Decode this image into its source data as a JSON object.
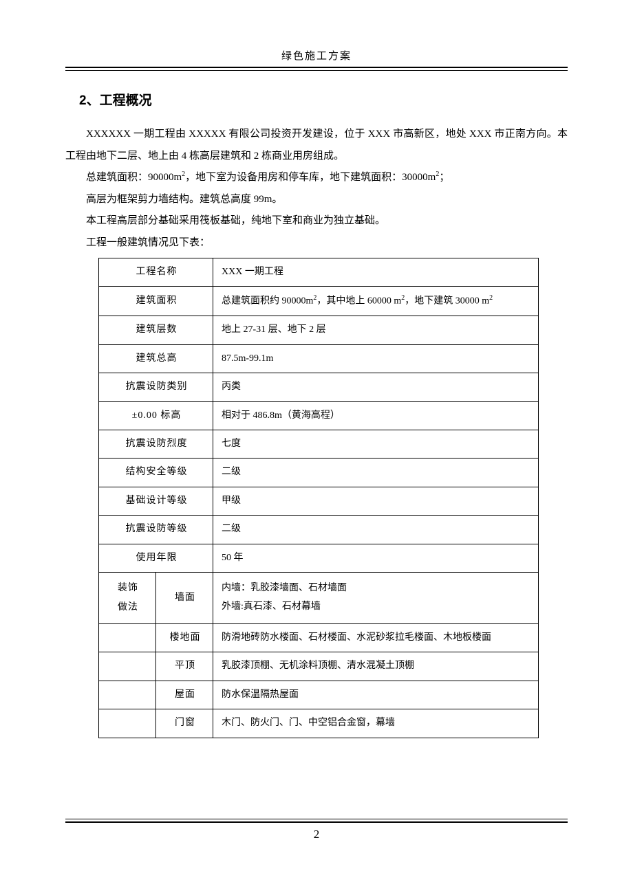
{
  "header": {
    "title": "绿色施工方案"
  },
  "section": {
    "heading": "2、工程概况",
    "p1": "XXXXXX 一期工程由 XXXXX 有限公司投资开发建设，位于 XXX 市高新区，地处 XXX 市正南方向。本工程由地下二层、地上由 4 栋高层建筑和 2 栋商业用房组成。",
    "p2_html": "总建筑面积：90000m<sup>2</sup>，地下室为设备用房和停车库，地下建筑面积：30000m<sup>2</sup>；",
    "p3": "高层为框架剪力墙结构。建筑总高度 99m。",
    "p4": "本工程高层部分基础采用筏板基础，纯地下室和商业为独立基础。",
    "p5": "工程一般建筑情况见下表："
  },
  "table": {
    "rows": [
      {
        "label": "工程名称",
        "value": "XXX 一期工程"
      },
      {
        "label": "建筑面积",
        "value_html": "总建筑面积约 90000m<sup>2</sup>，其中地上 60000 m<sup>2</sup>，地下建筑 30000 m<sup>2</sup>"
      },
      {
        "label": "建筑层数",
        "value": "地上 27-31 层、地下 2 层"
      },
      {
        "label": "建筑总高",
        "value": "87.5m-99.1m"
      },
      {
        "label": "抗震设防类别",
        "value": "丙类"
      },
      {
        "label": "±0.00 标高",
        "value": "相对于 486.8m（黄海高程）"
      },
      {
        "label": "抗震设防烈度",
        "value": "七度"
      },
      {
        "label": "结构安全等级",
        "value": "二级"
      },
      {
        "label": "基础设计等级",
        "value": "甲级"
      },
      {
        "label": "抗震设防等级",
        "value": "二级"
      },
      {
        "label": "使用年限",
        "value": "50 年"
      }
    ],
    "deco_group_label": "装饰\n做法",
    "deco_rows": [
      {
        "sub": "墙面",
        "value_html": "内墙：乳胶漆墙面、石材墙面<br>外墙:真石漆、石材幕墙"
      },
      {
        "sub": "楼地面",
        "value": "防滑地砖防水楼面、石材楼面、水泥砂浆拉毛楼面、木地板楼面"
      },
      {
        "sub": "平顶",
        "value": "乳胶漆顶棚、无机涂料顶棚、清水混凝土顶棚"
      },
      {
        "sub": "屋面",
        "value": "防水保温隔热屋面"
      },
      {
        "sub": "门窗",
        "value": "木门、防火门、门、中空铝合金窗，幕墙"
      }
    ]
  },
  "footer": {
    "page_number": "2"
  }
}
